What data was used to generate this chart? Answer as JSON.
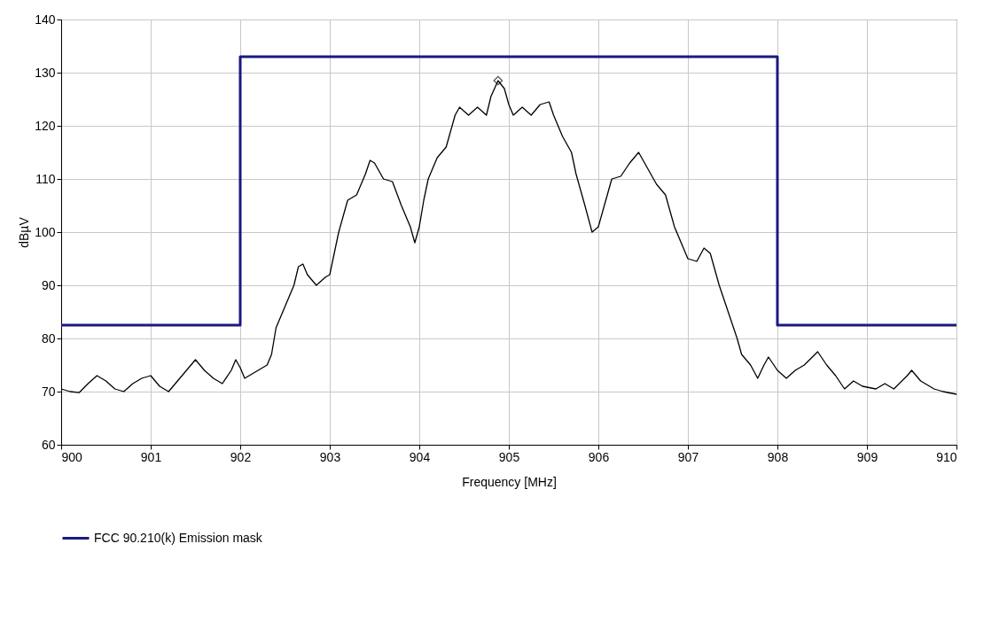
{
  "chart_data": {
    "type": "line",
    "xlabel": "Frequency [MHz]",
    "ylabel": "dBµV",
    "xlim": [
      900,
      910
    ],
    "xticks": [
      900,
      901,
      902,
      903,
      904,
      905,
      906,
      907,
      908,
      909,
      910
    ],
    "ylim": [
      60,
      140
    ],
    "yticks": [
      60,
      70,
      80,
      90,
      100,
      110,
      120,
      130,
      140
    ],
    "grid": true,
    "legend": "bottom",
    "series": [
      {
        "name": "FCC 90.210(k) Emission mask",
        "type": "step",
        "color": "#1a1a80",
        "x": [
          900,
          902,
          908,
          910
        ],
        "values": [
          82.5,
          133,
          82.5,
          82.5
        ]
      },
      {
        "type": "line",
        "color": "#000000",
        "x": [
          900.0,
          900.1,
          900.2,
          900.3,
          900.4,
          900.5,
          900.6,
          900.7,
          900.8,
          900.9,
          901.0,
          901.1,
          901.2,
          901.3,
          901.4,
          901.5,
          901.6,
          901.7,
          901.8,
          901.9,
          901.95,
          902.0,
          902.05,
          902.1,
          902.2,
          902.3,
          902.35,
          902.4,
          902.5,
          902.6,
          902.65,
          902.7,
          902.75,
          902.85,
          902.95,
          903.0,
          903.05,
          903.1,
          903.15,
          903.2,
          903.3,
          903.4,
          903.45,
          903.5,
          903.6,
          903.7,
          903.8,
          903.9,
          903.95,
          904.0,
          904.05,
          904.1,
          904.2,
          904.3,
          904.35,
          904.4,
          904.45,
          904.55,
          904.65,
          904.75,
          904.8,
          904.88,
          904.95,
          905.0,
          905.05,
          905.15,
          905.25,
          905.35,
          905.45,
          905.5,
          905.6,
          905.7,
          905.75,
          905.85,
          905.93,
          906.0,
          906.1,
          906.15,
          906.25,
          906.35,
          906.45,
          906.55,
          906.65,
          906.75,
          906.85,
          906.95,
          907.0,
          907.1,
          907.18,
          907.25,
          907.35,
          907.45,
          907.55,
          907.6,
          907.7,
          907.78,
          907.85,
          907.9,
          908.0,
          908.1,
          908.2,
          908.3,
          908.45,
          908.55,
          908.65,
          908.75,
          908.85,
          908.95,
          909.1,
          909.2,
          909.3,
          909.45,
          909.5,
          909.6,
          909.75,
          909.85,
          910.0
        ],
        "values": [
          70.5,
          70,
          69.8,
          71.5,
          73,
          72,
          70.5,
          70,
          71.5,
          72.5,
          73,
          71,
          70,
          72,
          74,
          76,
          74,
          72.5,
          71.5,
          74,
          76,
          74.5,
          72.5,
          73,
          74,
          75,
          77,
          82,
          86,
          90,
          93.5,
          94,
          92,
          90,
          91.5,
          92,
          96,
          100,
          103,
          106,
          107,
          111,
          113.5,
          113,
          110,
          109.5,
          105,
          101,
          98,
          101,
          106,
          110,
          114,
          116,
          119,
          122,
          123.5,
          122,
          123.5,
          122,
          125.5,
          128.5,
          127,
          124,
          122,
          123.5,
          122,
          124,
          124.5,
          122,
          118,
          115,
          111,
          105,
          100,
          101,
          107,
          110,
          110.5,
          113,
          115,
          112,
          109,
          107,
          101,
          97,
          95,
          94.5,
          97,
          96,
          90,
          85,
          80,
          77,
          75,
          72.5,
          75,
          76.5,
          74,
          72.5,
          74,
          75,
          77.5,
          75,
          73,
          70.5,
          72,
          71,
          70.5,
          71.5,
          70.5,
          73,
          74,
          72,
          70.5,
          70,
          69.5
        ]
      },
      {
        "type": "scatter",
        "marker": "diamond",
        "color": "#000000",
        "x": [
          904.88
        ],
        "values": [
          128.5
        ]
      }
    ]
  }
}
